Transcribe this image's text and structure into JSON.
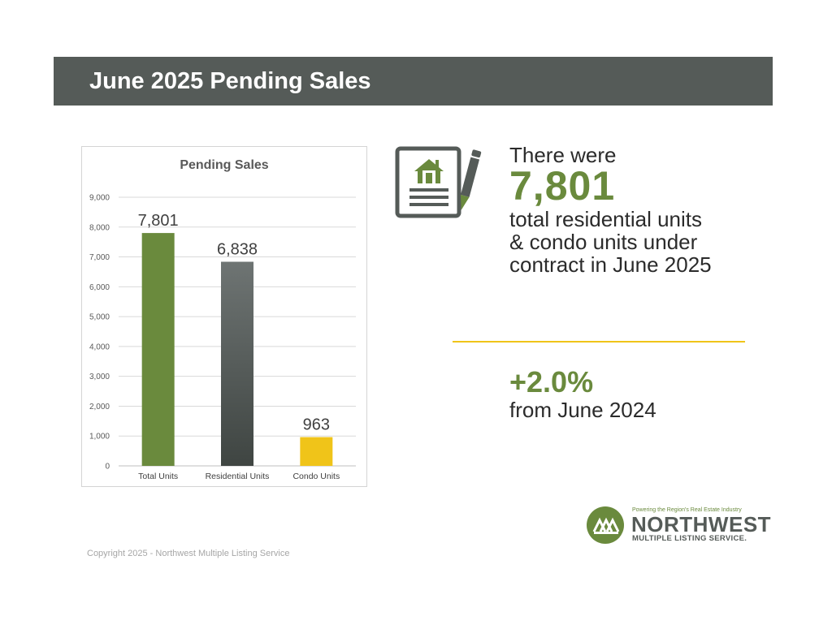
{
  "header": {
    "title": "June 2025 Pending Sales"
  },
  "chart_data": {
    "type": "bar",
    "title": "Pending Sales",
    "categories": [
      "Total Units",
      "Residential Units",
      "Condo Units"
    ],
    "values": [
      7801,
      6838,
      963
    ],
    "data_labels": [
      "7,801",
      "6,838",
      "963"
    ],
    "colors": [
      "#6a8a3d",
      "#555b58",
      "#f0c419"
    ],
    "ylim": [
      0,
      9000
    ],
    "yticks": [
      "0",
      "1,000",
      "2,000",
      "3,000",
      "4,000",
      "5,000",
      "6,000",
      "7,000",
      "8,000",
      "9,000"
    ],
    "grid": true,
    "xlabel": "",
    "ylabel": ""
  },
  "stat": {
    "intro": "There were",
    "value": "7,801",
    "description": "total residential units & condo units under contract in June 2025"
  },
  "change": {
    "value": "+2.0%",
    "description": "from June 2024"
  },
  "logo": {
    "tagline": "Powering the Region's Real Estate Industry",
    "name": "NORTHWEST",
    "subtitle": "MULTIPLE LISTING SERVICE.",
    "icon": "mountain-houses-icon"
  },
  "icons": {
    "document": "house-document-icon",
    "pen": "pen-icon"
  },
  "footer": {
    "copyright": "Copyright 2025 - Northwest Multiple Listing Service"
  }
}
